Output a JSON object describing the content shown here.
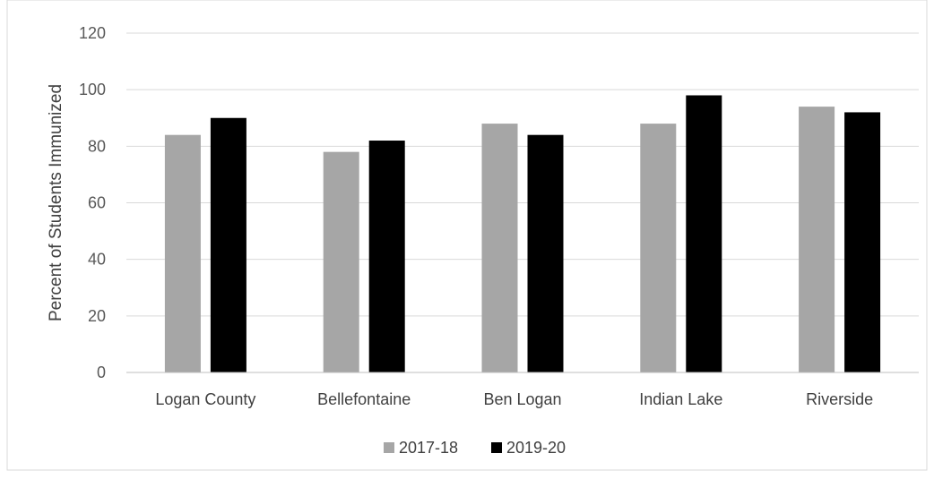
{
  "chart_data": {
    "type": "bar",
    "title": "",
    "xlabel": "",
    "ylabel": "Percent of Students Immunized",
    "categories": [
      "Logan County",
      "Bellefontaine",
      "Ben Logan",
      "Indian Lake",
      "Riverside"
    ],
    "series": [
      {
        "name": "2017-18",
        "values": [
          84,
          78,
          88,
          88,
          94
        ],
        "color": "#a6a6a6"
      },
      {
        "name": "2019-20",
        "values": [
          90,
          82,
          84,
          98,
          92
        ],
        "color": "#000000"
      }
    ],
    "ylim": [
      0,
      120
    ],
    "yticks": [
      0,
      20,
      40,
      60,
      80,
      100,
      120
    ],
    "grid": true,
    "legend_position": "bottom"
  }
}
